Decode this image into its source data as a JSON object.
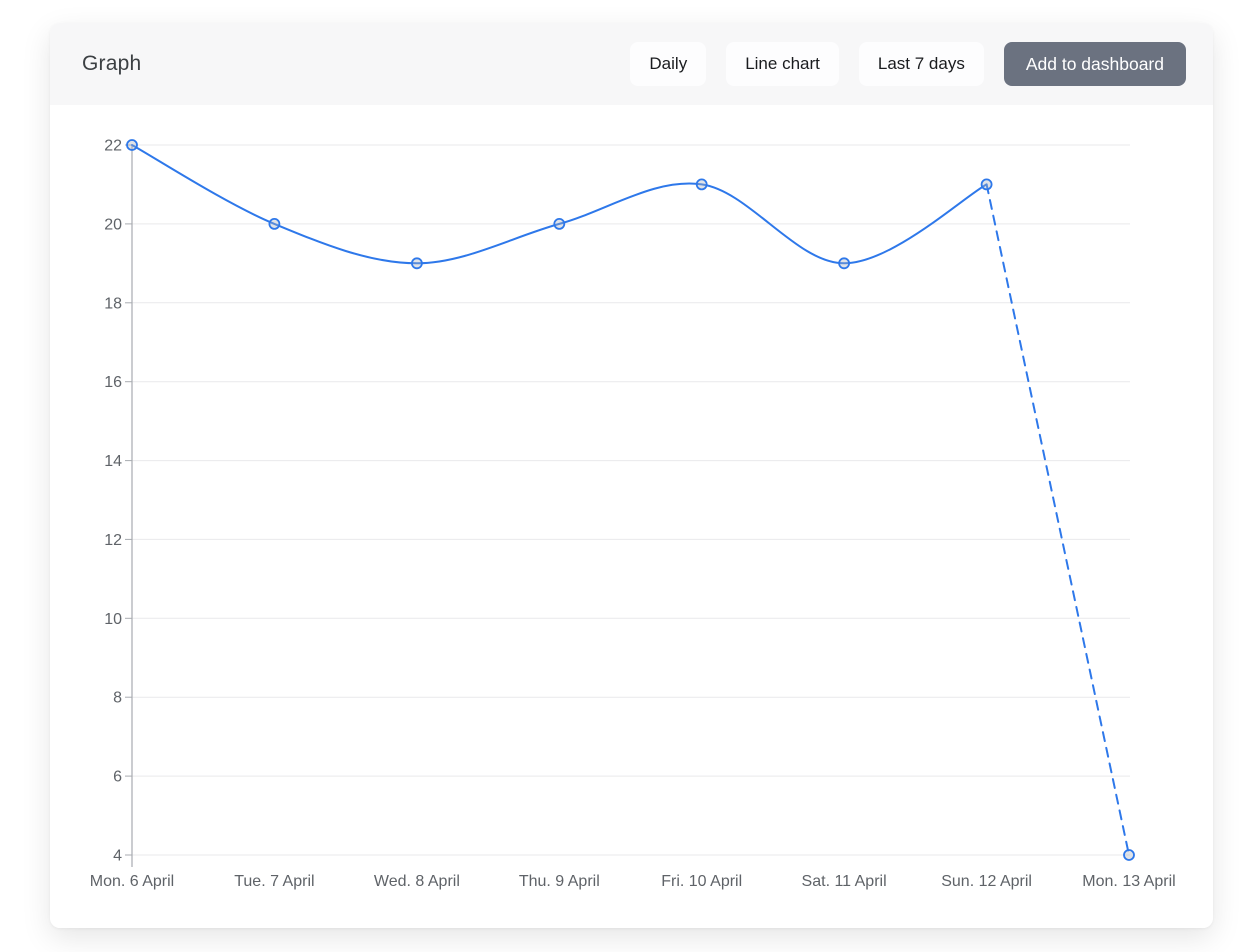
{
  "header": {
    "title": "Graph",
    "buttons": [
      {
        "label": "Daily"
      },
      {
        "label": "Line chart"
      },
      {
        "label": "Last 7 days"
      },
      {
        "label": "Add to dashboard"
      }
    ]
  },
  "chart_data": {
    "type": "line",
    "title": "Graph",
    "categories": [
      "Mon. 6 April",
      "Tue. 7 April",
      "Wed. 8 April",
      "Thu. 9 April",
      "Fri. 10 April",
      "Sat. 11 April",
      "Sun. 12 April",
      "Mon. 13 April"
    ],
    "values": [
      22,
      20,
      19,
      20,
      21,
      19,
      21,
      4
    ],
    "dashed_from_index": 6,
    "xlabel": "",
    "ylabel": "",
    "ylim": [
      4,
      22
    ],
    "yticks": [
      4,
      6,
      8,
      10,
      12,
      14,
      16,
      18,
      20,
      22
    ],
    "grid": true,
    "legend": "none",
    "marker": "hollow-circle",
    "line_color": "#2e78ea",
    "grid_color": "#e9e9eb",
    "axis_color": "#a8abb0",
    "label_color": "#5f6368"
  },
  "colors": {
    "header_bg": "#f7f7f8",
    "card_bg": "#ffffff",
    "primary_button_bg": "#6b7280",
    "primary_button_text": "#ffffff",
    "light_button_bg": "#fdfdfe",
    "title_text": "#3c4043"
  }
}
